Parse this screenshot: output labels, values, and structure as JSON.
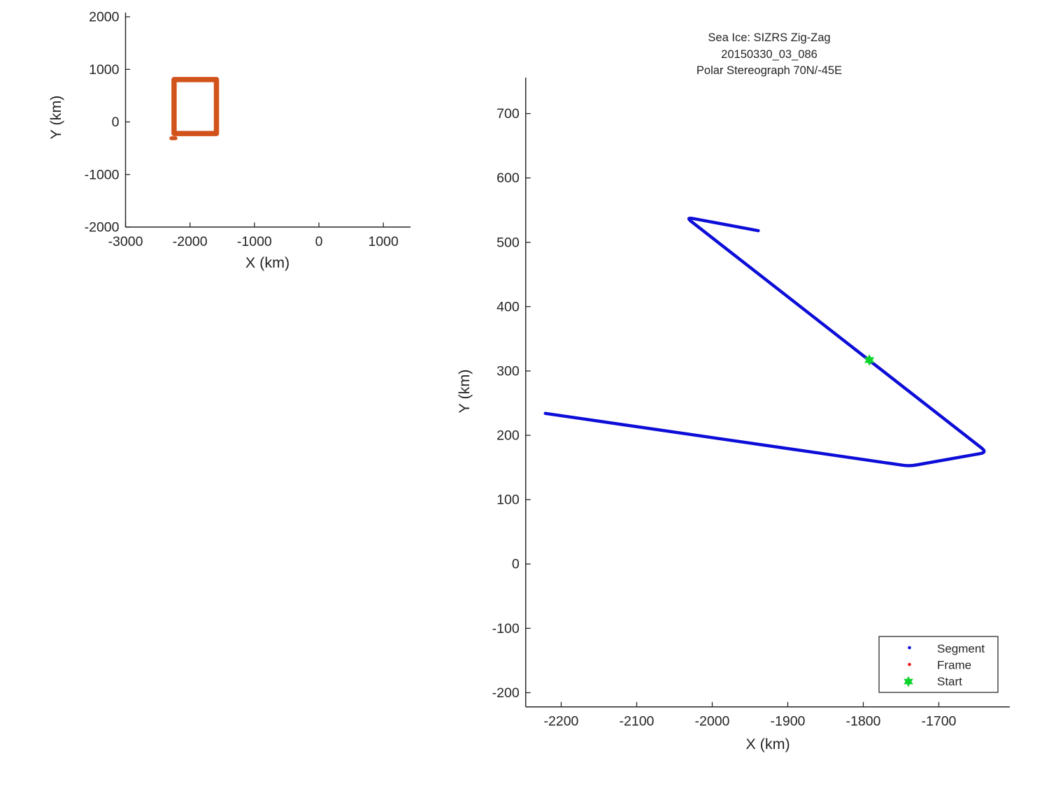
{
  "colors": {
    "background": "#ffffff",
    "axis": "#262626",
    "text": "#242424",
    "segment_blue": "#0d0dd8",
    "frame_red": "#e81717",
    "start_green": "#0cd32b",
    "box_orange": "#d2521c"
  },
  "chart_data": [
    {
      "id": "overview_map",
      "type": "line",
      "title": "",
      "xlabel": "X (km)",
      "ylabel": "Y (km)",
      "xlim": [
        -3000,
        1421
      ],
      "ylim": [
        -2000,
        2080
      ],
      "x_ticks": [
        -3000,
        -2000,
        -1000,
        0,
        1000
      ],
      "y_ticks": [
        -2000,
        -1000,
        0,
        1000,
        2000
      ],
      "grid": false,
      "legend": null,
      "series": [
        {
          "name": "coverage-box",
          "color_key": "box_orange",
          "line_width": 7.5,
          "corner_cut": 0,
          "points": [
            [
              -2247,
              -220
            ],
            [
              -2247,
              805
            ],
            [
              -1590,
              805
            ],
            [
              -1590,
              -220
            ],
            [
              -2247,
              -220
            ]
          ]
        },
        {
          "name": "coverage-box-start-stub",
          "color_key": "box_orange",
          "line_width": 5.5,
          "corner_cut": 0,
          "points": [
            [
              -2289,
              -311
            ],
            [
              -2224,
              -311
            ]
          ]
        }
      ]
    },
    {
      "id": "track_plot",
      "type": "line",
      "title_lines": [
        "Sea Ice: SIZRS Zig-Zag",
        "20150330_03_086",
        "Polar Stereograph 70N/-45E"
      ],
      "xlabel": "X (km)",
      "ylabel": "Y (km)",
      "xlim": [
        -2247,
        -1606
      ],
      "ylim": [
        -222,
        756
      ],
      "x_ticks": [
        -2200,
        -2100,
        -2000,
        -1900,
        -1800,
        -1700
      ],
      "y_ticks": [
        -200,
        -100,
        0,
        100,
        200,
        300,
        400,
        500,
        600,
        700
      ],
      "grid": false,
      "series": [
        {
          "name": "segment-track",
          "color_key": "segment_blue",
          "line_width": 4.5,
          "corner_cut": 10,
          "points": [
            [
              -1939,
              518
            ],
            [
              -2035,
              539
            ],
            [
              -1636,
              173.5
            ],
            [
              -1739,
              152
            ],
            [
              -2221,
              234
            ]
          ]
        }
      ],
      "markers": [
        {
          "name": "start-marker",
          "shape": "hexagram",
          "color_key": "start_green",
          "x": -1792,
          "y": 317,
          "radius": 8.3
        }
      ],
      "legend": {
        "position": "bottom-right",
        "entries": [
          {
            "label": "Segment",
            "marker": "dot",
            "color_key": "segment_blue"
          },
          {
            "label": "Frame",
            "marker": "dot",
            "color_key": "frame_red"
          },
          {
            "label": "Start",
            "marker": "hexagram",
            "color_key": "start_green"
          }
        ]
      }
    }
  ]
}
